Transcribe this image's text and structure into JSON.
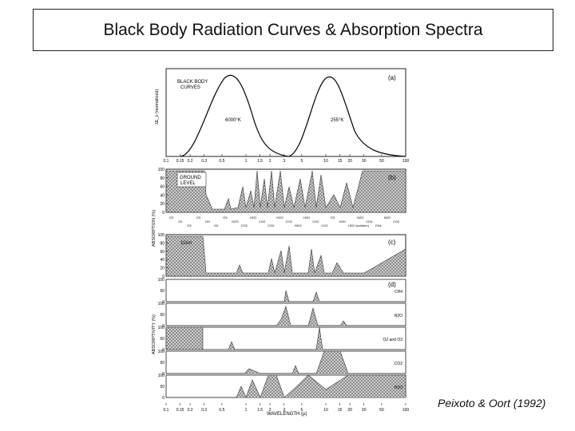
{
  "slide": {
    "title": "Black Body Radiation Curves & Absorption Spectra",
    "citation": "Peixoto & Oort (1992)"
  },
  "figure": {
    "panel_a": {
      "tag": "(a)",
      "legend_line1": "BLACK BODY",
      "legend_line2": "CURVES",
      "ylabel": "λE_λ (normalized)",
      "temp_sun": "6000°K",
      "temp_earth": "255°K"
    },
    "panel_b": {
      "tag": "(b)",
      "label_line1": "GROUND",
      "label_line2": "LEVEL",
      "ylabel": "ABSORPTION (%)",
      "gas_labels": [
        "O2",
        "O2",
        "O2",
        "O3",
        "OH",
        "O2",
        "O3",
        "H2O",
        "CO2",
        "H2O",
        "CO2",
        "CO2",
        "H2O",
        "CO2",
        "HDO",
        "H2O",
        "CO2",
        "CO2",
        "O3",
        "H2O",
        "H2O (solution)",
        "N2O",
        "CH4",
        "CH4",
        "N2O",
        "CO2"
      ]
    },
    "panel_c": {
      "tag": "(c)",
      "label": "11km"
    },
    "panel_d": {
      "tag": "(d)",
      "ylabel": "ABSORPTIVITY (%)",
      "gases": [
        "CH4",
        "N2O",
        "O2 and O3",
        "CO2",
        "H2O"
      ]
    },
    "wavelength_ticks": [
      "0.1",
      "0.15",
      "0.2",
      "0.3",
      "0.5",
      "1",
      "1.5",
      "2",
      "3",
      "5",
      "10",
      "15",
      "20",
      "30",
      "50",
      "100"
    ],
    "bottom_ticks": [
      "0.1",
      "0.15",
      "0.2",
      "0.3",
      "0.5",
      "1",
      "1.5",
      "2",
      "3",
      "5",
      "10",
      "15",
      "20",
      "30",
      "50",
      "100"
    ],
    "percent_ticks": [
      "100",
      "80",
      "60",
      "40",
      "20",
      "0"
    ],
    "sub_ticks": [
      "100",
      "50",
      "0"
    ],
    "xlabel": "WAVELENGTH (µ)"
  }
}
